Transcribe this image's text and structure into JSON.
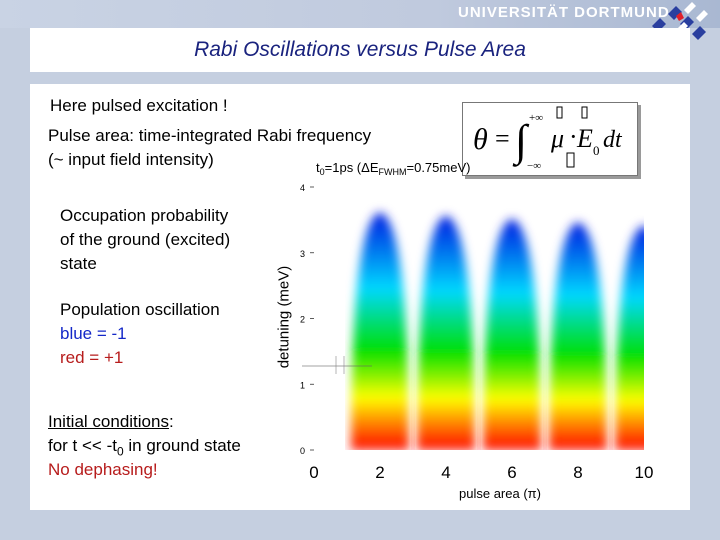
{
  "header": {
    "university": "UNIVERSITÄT DORTMUND"
  },
  "slide": {
    "title": "Rabi Oscillations versus Pulse Area",
    "line1": "Here pulsed excitation !",
    "line2": "Pulse area: time-integrated Rabi frequency",
    "line3": "(~ input field intensity)",
    "occupation": [
      "Occupation probability",
      "of the ground (excited)",
      "state"
    ],
    "population": "Population oscillation",
    "blue_text": "blue = -1",
    "red_text": "red = +1",
    "initial_label": "Initial conditions",
    "initial_colon": ":",
    "initial_line2_pre": "for t << -t",
    "initial_line2_sub": "0",
    "initial_line2_post": " in ground state",
    "no_dephasing": "No dephasing!"
  },
  "formula": {
    "theta": "θ",
    "equals": "=",
    "upper": "+∞",
    "lower": "−∞",
    "mu": "μ",
    "dot": "·",
    "E0": "E",
    "E0_sub": "0",
    "dt": "dt"
  },
  "chart_data": {
    "type": "heatmap",
    "annotation": "t0=1ps (ΔEFWHM=0.75meV)",
    "annotation_parts": {
      "t": "t",
      "t_sub": "0",
      "mid": "=1ps (ΔE",
      "E_sub": "FWHM",
      "end": "=0.75meV)"
    },
    "ylabel": "detuning (meV)",
    "xlabel": "pulse area (π)",
    "xlim": [
      0,
      10
    ],
    "ylim": [
      0,
      4
    ],
    "x_ticks": [
      "0",
      "2",
      "4",
      "6",
      "8",
      "10"
    ],
    "y_ticks": [
      "0",
      "1",
      "2",
      "3",
      "4"
    ],
    "lobe_centers_x": [
      2,
      4,
      6,
      8,
      10
    ],
    "colormap": [
      "#0018e0",
      "#00d8ff",
      "#00e000",
      "#ffff00",
      "#ff0000"
    ]
  }
}
